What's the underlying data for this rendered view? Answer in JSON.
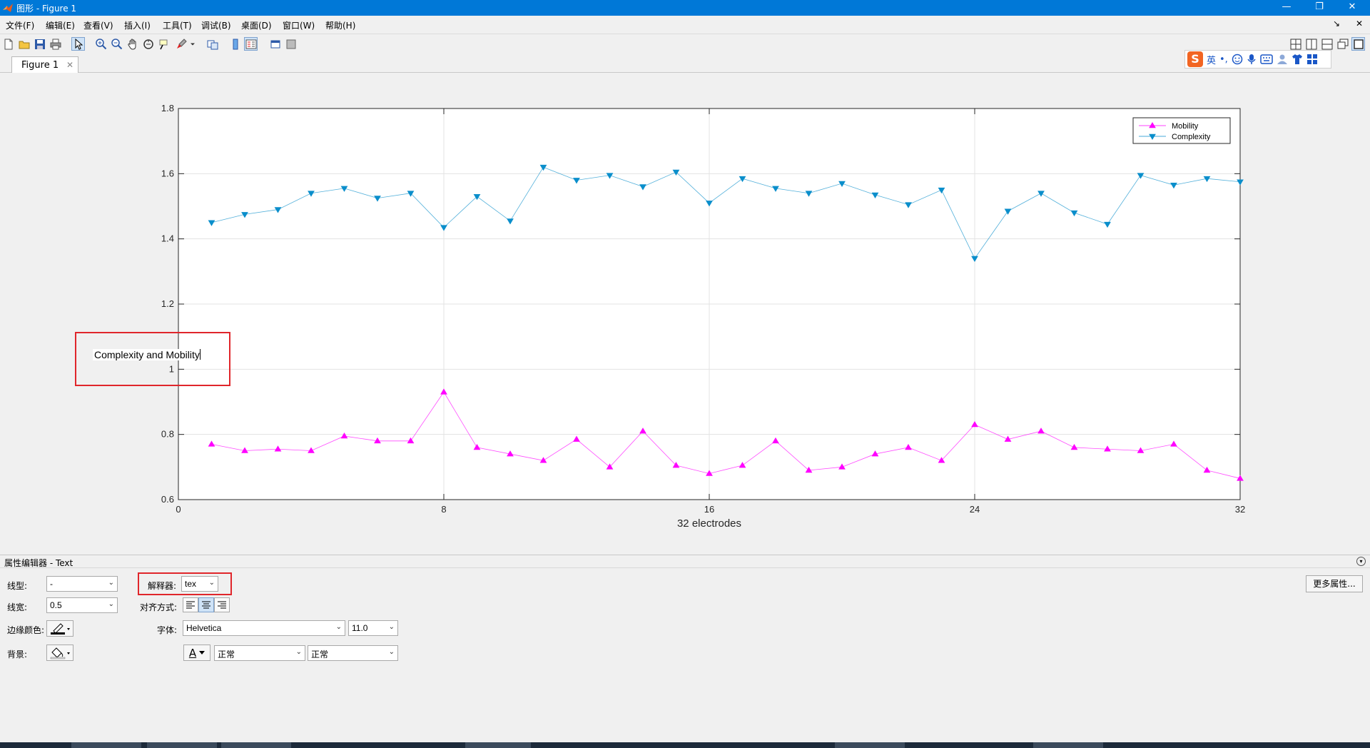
{
  "window": {
    "title": "图形 - Figure 1",
    "controls": [
      "—",
      "❐",
      "✕"
    ]
  },
  "menus": [
    "文件(F)",
    "编辑(E)",
    "查看(V)",
    "插入(I)",
    "工具(T)",
    "调试(B)",
    "桌面(D)",
    "窗口(W)",
    "帮助(H)"
  ],
  "menu_right": [
    "↘",
    "✕"
  ],
  "tab": {
    "label": "Figure 1",
    "close": "✕"
  },
  "ime": {
    "logo": "S",
    "mode": "英",
    "punct": "•,"
  },
  "chart_data": {
    "type": "line",
    "xlabel": "32 electrodes",
    "ylabel": "",
    "xlim": [
      0,
      32
    ],
    "ylim": [
      0.6,
      1.8
    ],
    "xticks": [
      0,
      8,
      16,
      24,
      32
    ],
    "yticks": [
      0.6,
      0.8,
      1,
      1.2,
      1.4,
      1.6,
      1.8
    ],
    "grid": "x-and-y",
    "legend_position": "top-right",
    "x": [
      1,
      2,
      3,
      4,
      5,
      6,
      7,
      8,
      9,
      10,
      11,
      12,
      13,
      14,
      15,
      16,
      17,
      18,
      19,
      20,
      21,
      22,
      23,
      24,
      25,
      26,
      27,
      28,
      29,
      30,
      31,
      32
    ],
    "series": [
      {
        "name": "Mobility",
        "color": "#ff00ff",
        "marker": "triangle-up",
        "values": [
          0.77,
          0.75,
          0.755,
          0.75,
          0.795,
          0.78,
          0.78,
          0.93,
          0.76,
          0.74,
          0.72,
          0.785,
          0.7,
          0.81,
          0.705,
          0.68,
          0.705,
          0.78,
          0.69,
          0.7,
          0.74,
          0.76,
          0.72,
          0.83,
          0.785,
          0.81,
          0.76,
          0.755,
          0.75,
          0.77,
          0.69,
          0.665
        ]
      },
      {
        "name": "Complexity",
        "color": "#0a8ecb",
        "marker": "triangle-down",
        "values": [
          1.45,
          1.475,
          1.49,
          1.54,
          1.555,
          1.525,
          1.54,
          1.435,
          1.53,
          1.455,
          1.62,
          1.58,
          1.595,
          1.56,
          1.605,
          1.51,
          1.585,
          1.555,
          1.54,
          1.57,
          1.535,
          1.505,
          1.55,
          1.34,
          1.485,
          1.54,
          1.48,
          1.445,
          1.595,
          1.565,
          1.585,
          1.575
        ]
      }
    ]
  },
  "annotation": {
    "text": "Complexity and Mobility"
  },
  "property_editor": {
    "title": "属性编辑器 - Text",
    "collapse": "▾",
    "linestyle_label": "线型:",
    "linestyle_value": "-",
    "linewidth_label": "线宽:",
    "linewidth_value": "0.5",
    "edgecolor_label": "边缘颜色:",
    "background_label": "背景:",
    "interpreter_label": "解释器:",
    "interpreter_value": "tex",
    "align_label": "对齐方式:",
    "font_label": "字体:",
    "font_value": "Helvetica",
    "fontsize_value": "11.0",
    "weight_value": "正常",
    "angle_value": "正常",
    "text_color_letter": "A",
    "more_button": "更多属性..."
  },
  "colors": {
    "titlebar": "#0078d7",
    "highlight": "#e0262b"
  }
}
